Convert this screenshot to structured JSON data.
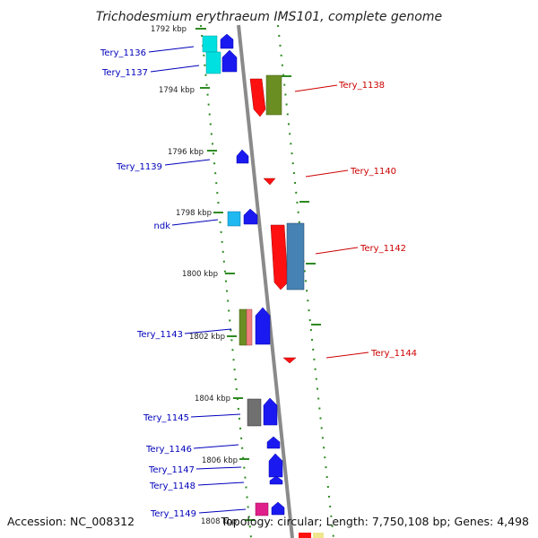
{
  "title": "Trichodesmium erythraeum IMS101, complete genome",
  "footer": {
    "accession": "Accession: NC_008312",
    "topology": "Topology: circular; Length: 7,750,108 bp; Genes: 4,498"
  },
  "colors": {
    "backbone": "#8a8a8a",
    "tick": "#2e8b22",
    "label_left": "#0000bb",
    "label_right": "#cc0000"
  },
  "ticks": [
    "1792 kbp",
    "1794 kbp",
    "1796 kbp",
    "1798 kbp",
    "1800 kbp",
    "1802 kbp",
    "1804 kbp",
    "1806 kbp",
    "1808 kbp"
  ],
  "genes_left": [
    "Tery_1136",
    "Tery_1137",
    "Tery_1139",
    "ndk",
    "Tery_1143",
    "Tery_1145",
    "Tery_1146",
    "Tery_1147",
    "Tery_1148",
    "Tery_1149"
  ],
  "genes_right": [
    "Tery_1138",
    "Tery_1140",
    "Tery_1142",
    "Tery_1144"
  ]
}
